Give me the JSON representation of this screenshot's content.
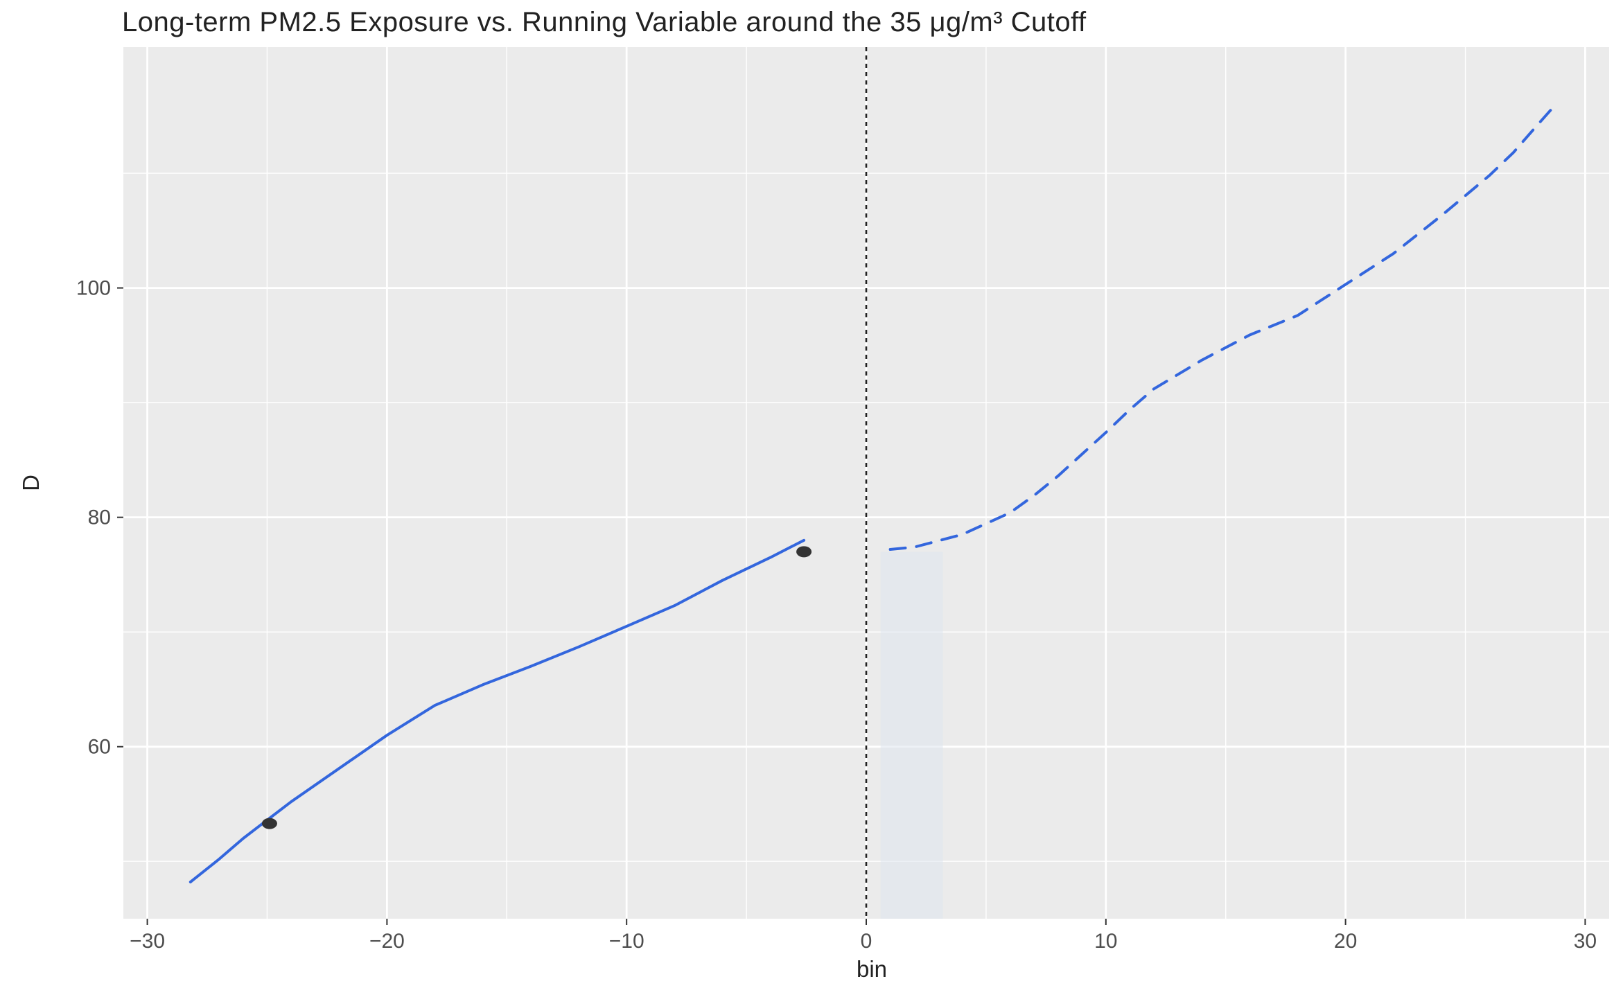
{
  "chart_data": {
    "type": "line",
    "title": "Long-term PM2.5 Exposure vs. Running Variable around the 35 μg/m³ Cutoff",
    "xlabel": "bin",
    "ylabel": "D",
    "xlim": [
      -31,
      31
    ],
    "ylim": [
      45,
      121
    ],
    "x_ticks": [
      -30,
      -20,
      -10,
      0,
      10,
      20,
      30
    ],
    "x_tick_labels": [
      "−30",
      "−20",
      "−10",
      "0",
      "10",
      "20",
      "30"
    ],
    "y_ticks": [
      60,
      80,
      100
    ],
    "y_tick_labels": [
      "60",
      "80",
      "100"
    ],
    "grid": true,
    "cutoff": 0,
    "legend": "none",
    "colors": {
      "panel": "#ebebeb",
      "grid": "#ffffff",
      "line": "#3366dd",
      "point": "#333333",
      "cutoff": "#222222",
      "ribbon": "#dfe6ef"
    },
    "series": [
      {
        "style": "solid",
        "x": [
          -28.2,
          -27,
          -26,
          -25,
          -24,
          -22,
          -20,
          -18,
          -16,
          -14,
          -12,
          -10,
          -8,
          -6,
          -4,
          -2.6
        ],
        "y": [
          48.2,
          50.2,
          52.0,
          53.6,
          55.2,
          58.1,
          61.0,
          63.6,
          65.4,
          67.0,
          68.7,
          70.5,
          72.3,
          74.5,
          76.5,
          78.0
        ]
      },
      {
        "style": "dashed",
        "x": [
          1,
          2,
          4,
          6,
          7,
          8,
          9,
          10,
          11,
          12,
          14,
          16,
          18,
          20,
          22,
          24,
          26,
          27,
          28,
          28.6
        ],
        "y": [
          77.2,
          77.4,
          78.5,
          80.4,
          81.9,
          83.6,
          85.5,
          87.4,
          89.4,
          91.2,
          93.7,
          95.9,
          97.6,
          100.3,
          103.0,
          106.3,
          109.8,
          111.8,
          114.2,
          115.6
        ]
      }
    ],
    "points": [
      {
        "x": -24.9,
        "y": 53.3
      },
      {
        "x": -2.6,
        "y": 77.0
      }
    ]
  }
}
